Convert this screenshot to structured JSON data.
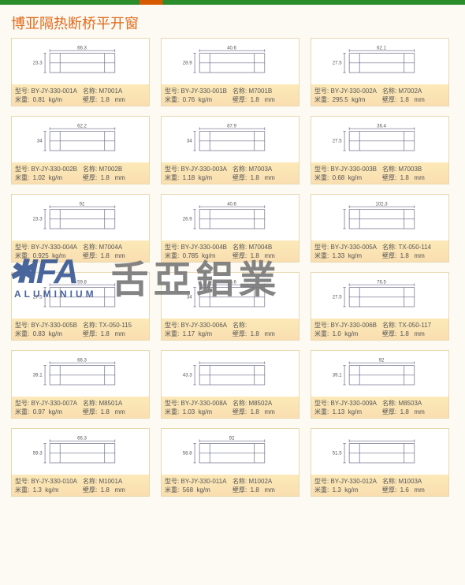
{
  "page_title": "博亚隔热断桥平开窗",
  "labels": {
    "model": "型号",
    "name": "名称",
    "weight": "米重",
    "thickness": "壁厚",
    "weight_unit": "kg/m",
    "thickness_unit": "mm"
  },
  "watermark": {
    "brand_en": "IFA",
    "brand_sub": "ALUMINIUM",
    "brand_cn": "舌亞鋁業"
  },
  "diagram_stroke": "#6a6a88",
  "diagram_stroke_width": 0.8,
  "products": [
    {
      "model": "BY-JY-330-001A",
      "name": "M7001A",
      "weight": "0.81",
      "thickness": "1.8",
      "w": "66.3",
      "h": "23.3"
    },
    {
      "model": "BY-JY-330-001B",
      "name": "M7001B",
      "weight": "0.76",
      "thickness": "1.8",
      "w": "40.6",
      "h": "28.9"
    },
    {
      "model": "BY-JY-330-002A",
      "name": "M7002A",
      "weight": "295.5",
      "thickness": "1.8",
      "w": "62.1",
      "h": "27.5"
    },
    {
      "model": "BY-JY-330-002B",
      "name": "M7002B",
      "weight": "1.02",
      "thickness": "1.8",
      "w": "62.2",
      "h": "34"
    },
    {
      "model": "BY-JY-330-003A",
      "name": "M7003A",
      "weight": "1.18",
      "thickness": "1.8",
      "w": "87.9",
      "h": "34"
    },
    {
      "model": "BY-JY-330-003B",
      "name": "M7003B",
      "weight": "0.68",
      "thickness": "1.8",
      "w": "36.4",
      "h": "27.5"
    },
    {
      "model": "BY-JY-330-004A",
      "name": "M7004A",
      "weight": "0.925",
      "thickness": "1.8",
      "w": "92",
      "h": "23.3"
    },
    {
      "model": "BY-JY-330-004B",
      "name": "M7004B",
      "weight": "0.785",
      "thickness": "1.8",
      "w": "40.6",
      "h": "26.9"
    },
    {
      "model": "BY-JY-330-005A",
      "name": "TX-050-114",
      "weight": "1.33",
      "thickness": "1.8",
      "w": "102.3",
      "h": ""
    },
    {
      "model": "BY-JY-330-005B",
      "name": "TX-050-115",
      "weight": "0.83",
      "thickness": "1.8",
      "w": "59.8",
      "h": "27.5"
    },
    {
      "model": "BY-JY-330-006A",
      "name": "",
      "weight": "1.17",
      "thickness": "1.8",
      "w": "76.6",
      "h": "34"
    },
    {
      "model": "BY-JY-330-006B",
      "name": "TX-050-117",
      "weight": "1.0",
      "thickness": "1.8",
      "w": "76.5",
      "h": "27.5"
    },
    {
      "model": "BY-JY-330-007A",
      "name": "M8501A",
      "weight": "0.97",
      "thickness": "1.8",
      "w": "66.3",
      "h": "39.1"
    },
    {
      "model": "BY-JY-330-008A",
      "name": "M8502A",
      "weight": "1.03",
      "thickness": "1.8",
      "w": "",
      "h": "43.3"
    },
    {
      "model": "BY-JY-330-009A",
      "name": "M8503A",
      "weight": "1.13",
      "thickness": "1.8",
      "w": "92",
      "h": "39.1"
    },
    {
      "model": "BY-JY-330-010A",
      "name": "M1001A",
      "weight": "1.3",
      "thickness": "1.8",
      "w": "66.3",
      "h": "59.3"
    },
    {
      "model": "BY-JY-330-011A",
      "name": "M1002A",
      "weight": "568",
      "thickness": "1.8",
      "w": "92",
      "h": "58.8"
    },
    {
      "model": "BY-JY-330-012A",
      "name": "M1003A",
      "weight": "1.3",
      "thickness": "1.6",
      "w": "",
      "h": "51.5"
    }
  ]
}
